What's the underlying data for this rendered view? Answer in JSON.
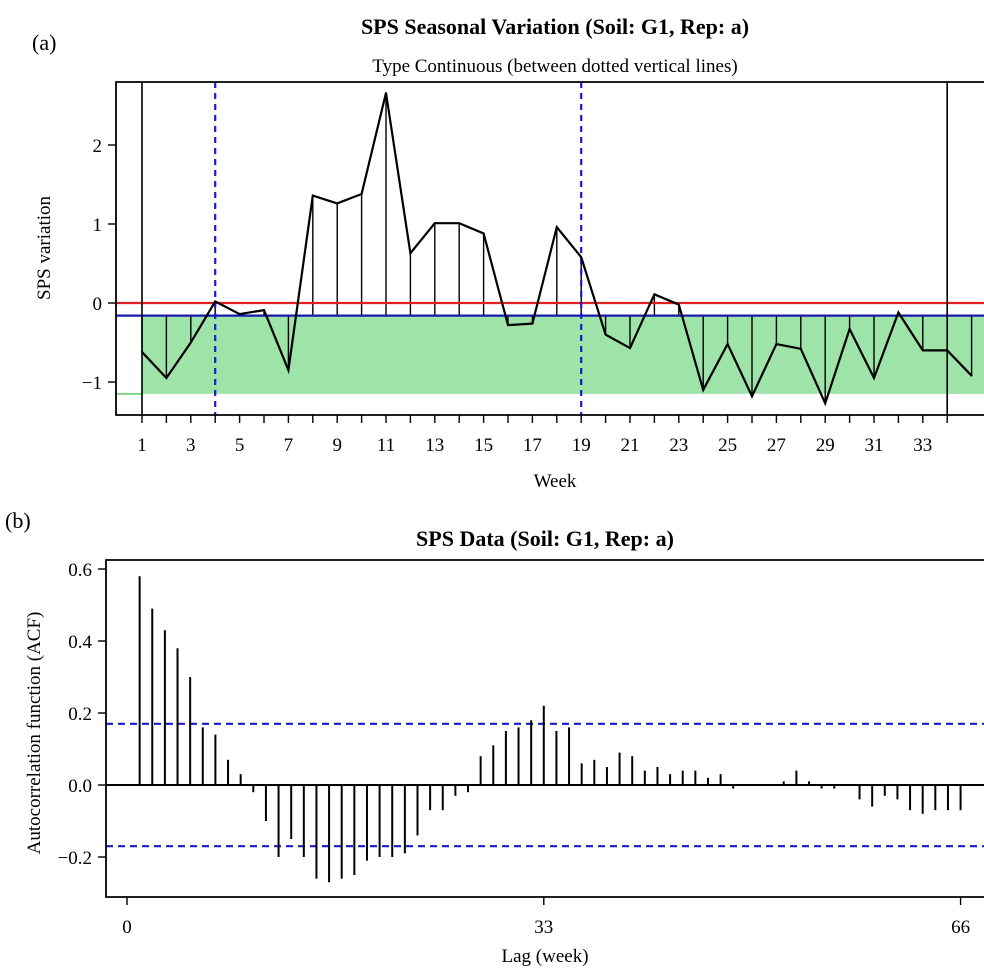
{
  "panel_a": {
    "panel_label": "(a)",
    "title": "SPS Seasonal Variation (Soil: G1, Rep: a)",
    "subtitle": "Type Continuous (between dotted vertical lines)",
    "xlabel": "Week",
    "ylabel": "SPS variation",
    "x_ticks": [
      1,
      3,
      5,
      7,
      9,
      11,
      13,
      15,
      17,
      19,
      21,
      23,
      25,
      27,
      29,
      31,
      33
    ],
    "y_ticks": [
      2,
      1,
      0,
      -1
    ],
    "colors": {
      "zero_line": "#e02020",
      "mean_line": "#1a1aaa",
      "band": "#9ee3a8",
      "band_edge": "#7cd98a",
      "vline": "#1a1acc",
      "series": "#000000"
    }
  },
  "panel_b": {
    "panel_label": "(b)",
    "title": "SPS Data (Soil: G1, Rep: a)",
    "xlabel": "Lag (week)",
    "ylabel": "Autocorrelation function (ACF)",
    "x_ticks": [
      0,
      33,
      66
    ],
    "y_ticks": [
      "0.6",
      "0.4",
      "0.2",
      "0.0",
      "-0.2"
    ],
    "colors": {
      "ci_line": "#1a1acc",
      "bars": "#000000"
    }
  },
  "chart_data": [
    {
      "type": "line",
      "title": "SPS Seasonal Variation (Soil: G1, Rep: a)",
      "subtitle": "Type Continuous (between dotted vertical lines)",
      "xlabel": "Week",
      "ylabel": "SPS variation",
      "xlim": [
        0,
        35
      ],
      "ylim": [
        -1.45,
        2.85
      ],
      "x": [
        1,
        2,
        3,
        4,
        5,
        6,
        7,
        8,
        9,
        10,
        11,
        12,
        13,
        14,
        15,
        16,
        17,
        18,
        19,
        20,
        21,
        22,
        23,
        24,
        25,
        26,
        27,
        28,
        29,
        30,
        31,
        32,
        33,
        34,
        35
      ],
      "y": [
        -0.62,
        -0.95,
        -0.5,
        0.02,
        -0.14,
        -0.09,
        -0.85,
        1.36,
        1.26,
        1.38,
        2.66,
        0.63,
        1.01,
        1.01,
        0.88,
        -0.28,
        -0.26,
        0.96,
        0.58,
        -0.4,
        -0.57,
        0.11,
        -0.02,
        -1.1,
        -0.52,
        -1.18,
        -0.52,
        -0.58,
        -1.27,
        -0.33,
        -0.95,
        -0.12,
        -0.6,
        -0.6,
        -0.92
      ],
      "zero_line": 0,
      "mean_line": -0.16,
      "band": [
        -1.15,
        -0.16
      ],
      "dotted_vlines_at_week": [
        4,
        19
      ],
      "solid_vlines_at_week": [
        1,
        34
      ],
      "grid": false
    },
    {
      "type": "bar",
      "title": "SPS Data (Soil: G1, Rep: a)",
      "xlabel": "Lag (week)",
      "ylabel": "Autocorrelation function (ACF)",
      "xlim": [
        0,
        66
      ],
      "ylim": [
        -0.3,
        0.6
      ],
      "confidence_bounds": [
        0.17,
        -0.17
      ],
      "lags": [
        1,
        2,
        3,
        4,
        5,
        6,
        7,
        8,
        9,
        10,
        11,
        12,
        13,
        14,
        15,
        16,
        17,
        18,
        19,
        20,
        21,
        22,
        23,
        24,
        25,
        26,
        27,
        28,
        29,
        30,
        31,
        32,
        33,
        34,
        35,
        36,
        37,
        38,
        39,
        40,
        41,
        42,
        43,
        44,
        45,
        46,
        47,
        48,
        49,
        50,
        51,
        52,
        53,
        54,
        55,
        56,
        57,
        58,
        59,
        60,
        61,
        62,
        63,
        64,
        65,
        66
      ],
      "values": [
        0.58,
        0.49,
        0.43,
        0.38,
        0.3,
        0.16,
        0.14,
        0.07,
        0.03,
        -0.02,
        -0.1,
        -0.2,
        -0.15,
        -0.2,
        -0.26,
        -0.27,
        -0.26,
        -0.25,
        -0.21,
        -0.2,
        -0.2,
        -0.19,
        -0.14,
        -0.07,
        -0.07,
        -0.03,
        -0.02,
        0.08,
        0.11,
        0.15,
        0.16,
        0.18,
        0.22,
        0.15,
        0.16,
        0.06,
        0.07,
        0.05,
        0.09,
        0.08,
        0.04,
        0.05,
        0.03,
        0.04,
        0.04,
        0.02,
        0.03,
        -0.01,
        0.0,
        0.0,
        0.0,
        0.01,
        0.04,
        0.01,
        -0.01,
        -0.01,
        0.0,
        -0.04,
        -0.06,
        -0.03,
        -0.04,
        -0.07,
        -0.08,
        -0.07,
        -0.07,
        -0.07
      ],
      "grid": false
    }
  ]
}
